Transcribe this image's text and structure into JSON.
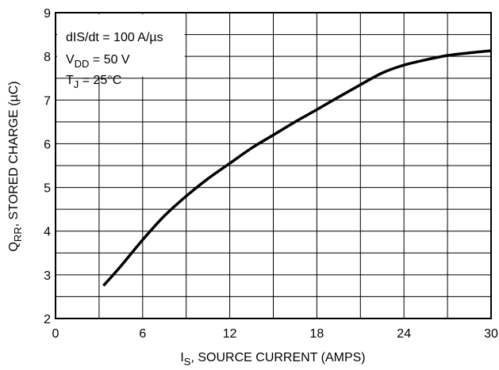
{
  "chart_data": {
    "type": "line",
    "title": "",
    "xlabel": {
      "main": "I",
      "sub": "S",
      "rest": ", SOURCE CURRENT (AMPS)"
    },
    "ylabel": {
      "main": "Q",
      "sub": "RR",
      "rest": ", STORED CHARGE (µC)"
    },
    "xlim": [
      0,
      30
    ],
    "ylim": [
      2,
      9
    ],
    "x_ticks": [
      0,
      6,
      12,
      18,
      24,
      30
    ],
    "y_ticks": [
      2,
      3,
      4,
      5,
      6,
      7,
      8,
      9
    ],
    "x_ticks_text": [
      "0",
      "6",
      "12",
      "18",
      "24",
      "30"
    ],
    "y_ticks_text": [
      "2",
      "3",
      "4",
      "5",
      "6",
      "7",
      "8",
      "9"
    ],
    "grid": true,
    "series": [
      {
        "x": [
          3.3,
          4.5,
          6,
          7.5,
          9,
          10.5,
          12,
          13.5,
          15,
          16.5,
          18,
          19.5,
          21,
          22.5,
          24,
          25.5,
          27,
          28.5,
          30
        ],
        "y": [
          2.75,
          3.2,
          3.8,
          4.35,
          4.8,
          5.2,
          5.55,
          5.9,
          6.2,
          6.5,
          6.78,
          7.07,
          7.35,
          7.62,
          7.8,
          7.92,
          8.02,
          8.08,
          8.13
        ]
      }
    ],
    "annotations": [
      {
        "id": "didt",
        "text": "dIS/dt = 100 A/µs"
      },
      {
        "id": "vdd",
        "main": "V",
        "sub": "DD",
        "rest": " = 50 V"
      },
      {
        "id": "tj",
        "main": "T",
        "sub": "J",
        "rest": " = 25°C"
      }
    ]
  }
}
